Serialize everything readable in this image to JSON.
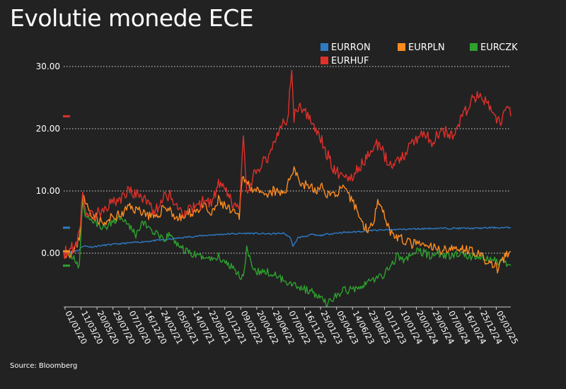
{
  "title": "Evolutie monede ECE",
  "source": "Source: Bloomberg",
  "colors": {
    "background": "#222222",
    "EURRON": "#2e7bc4",
    "EURPLN": "#ff8b1f",
    "EURCZK": "#2ea02e",
    "EURHUF": "#e0302a",
    "grid": "#ffffff",
    "text": "#ffffff"
  },
  "chart_data": {
    "type": "line",
    "title": "Evolutie monede ECE",
    "xlabel": "",
    "ylabel": "",
    "ylim": [
      -8,
      31
    ],
    "xlim": [
      "2020-01-01",
      "2025-05-30"
    ],
    "y_ticks": [
      {
        "value": 0,
        "label": "0.00"
      },
      {
        "value": 10,
        "label": "10.00"
      },
      {
        "value": 20,
        "label": "20.00"
      },
      {
        "value": 30,
        "label": "30.00"
      }
    ],
    "grid": "horizontal dotted",
    "legend_position": "top-right",
    "x_tick_labels": [
      "01/01/20",
      "11/03/20",
      "20/05/20",
      "29/07/20",
      "07/10/20",
      "16/12/20",
      "24/02/21",
      "05/05/21",
      "14/07/21",
      "22/09/21",
      "01/12/21",
      "09/02/22",
      "20/04/22",
      "29/06/22",
      "07/09/22",
      "16/11/22",
      "25/01/23",
      "05/04/23",
      "14/06/23",
      "23/08/23",
      "01/11/23",
      "10/01/24",
      "20/03/24",
      "29/05/24",
      "07/08/24",
      "16/10/24",
      "25/12/24",
      "05/03/25"
    ],
    "series": [
      {
        "name": "EURRON",
        "x": [
          "2020-01-01",
          "2020-02-15",
          "2020-03-10",
          "2020-03-25",
          "2020-05-01",
          "2020-07-01",
          "2020-10-01",
          "2021-01-01",
          "2021-04-01",
          "2021-07-01",
          "2021-10-01",
          "2022-01-01",
          "2022-04-01",
          "2022-07-01",
          "2022-09-01",
          "2022-10-01",
          "2022-10-10",
          "2022-11-01",
          "2022-12-01",
          "2023-01-01",
          "2023-02-01",
          "2023-03-01",
          "2023-05-01",
          "2023-07-01",
          "2023-09-01",
          "2023-11-01",
          "2024-01-01",
          "2024-04-01",
          "2024-07-01",
          "2024-10-01",
          "2025-01-01",
          "2025-03-01",
          "2025-05-30"
        ],
        "values": [
          0.0,
          0.3,
          0.5,
          1.2,
          1.0,
          1.3,
          1.6,
          1.9,
          2.2,
          2.6,
          2.9,
          3.1,
          3.2,
          3.1,
          3.2,
          2.4,
          1.0,
          2.5,
          2.7,
          3.0,
          2.8,
          3.0,
          3.3,
          3.4,
          3.6,
          3.7,
          3.8,
          3.9,
          4.0,
          4.0,
          4.0,
          4.1,
          4.1
        ],
        "end_value": 4.1
      },
      {
        "name": "EURPLN",
        "x": [
          "2020-01-01",
          "2020-02-15",
          "2020-03-10",
          "2020-03-25",
          "2020-04-05",
          "2020-05-01",
          "2020-06-01",
          "2020-07-01",
          "2020-08-01",
          "2020-09-15",
          "2020-10-15",
          "2020-11-15",
          "2020-12-15",
          "2021-01-15",
          "2021-02-15",
          "2021-03-15",
          "2021-04-15",
          "2021-05-15",
          "2021-06-15",
          "2021-07-15",
          "2021-08-15",
          "2021-09-15",
          "2021-10-15",
          "2021-11-15",
          "2021-12-15",
          "2022-01-15",
          "2022-02-15",
          "2022-03-01",
          "2022-03-15",
          "2022-04-15",
          "2022-05-15",
          "2022-06-15",
          "2022-07-15",
          "2022-08-15",
          "2022-09-15",
          "2022-10-01",
          "2022-10-15",
          "2022-11-15",
          "2022-12-15",
          "2023-01-15",
          "2023-02-15",
          "2023-03-15",
          "2023-04-15",
          "2023-05-15",
          "2023-06-15",
          "2023-07-15",
          "2023-08-15",
          "2023-09-15",
          "2023-10-01",
          "2023-10-20",
          "2023-11-15",
          "2023-12-15",
          "2024-01-15",
          "2024-02-15",
          "2024-03-15",
          "2024-04-15",
          "2024-05-15",
          "2024-06-15",
          "2024-07-15",
          "2024-08-15",
          "2024-09-15",
          "2024-10-15",
          "2024-11-15",
          "2024-12-15",
          "2025-01-15",
          "2025-02-15",
          "2025-03-15",
          "2025-04-01",
          "2025-04-15",
          "2025-05-30"
        ],
        "values": [
          0.0,
          0.2,
          2.5,
          9.5,
          8.0,
          6.5,
          5.5,
          4.5,
          5.8,
          6.2,
          7.5,
          7.0,
          6.8,
          6.0,
          5.5,
          7.5,
          7.0,
          5.5,
          5.8,
          6.5,
          7.0,
          7.5,
          6.0,
          8.5,
          7.5,
          6.5,
          5.8,
          13.0,
          11.5,
          10.5,
          9.5,
          9.0,
          10.0,
          9.5,
          10.5,
          12.5,
          14.0,
          11.0,
          11.0,
          10.0,
          10.5,
          9.5,
          9.5,
          10.5,
          9.0,
          7.5,
          4.5,
          3.8,
          5.0,
          9.0,
          6.5,
          3.5,
          2.5,
          2.0,
          1.5,
          1.5,
          1.0,
          1.0,
          0.5,
          0.8,
          0.5,
          1.0,
          0.5,
          0.5,
          -0.5,
          -1.5,
          -1.8,
          -2.5,
          -1.5,
          0.3
        ],
        "end_value": 0.3
      },
      {
        "name": "EURCZK",
        "x": [
          "2020-01-01",
          "2020-02-15",
          "2020-03-10",
          "2020-03-25",
          "2020-04-05",
          "2020-05-01",
          "2020-06-01",
          "2020-07-01",
          "2020-08-01",
          "2020-09-15",
          "2020-10-15",
          "2020-11-15",
          "2020-12-15",
          "2021-01-15",
          "2021-02-15",
          "2021-03-15",
          "2021-04-15",
          "2021-05-15",
          "2021-06-15",
          "2021-07-15",
          "2021-08-15",
          "2021-09-15",
          "2021-10-15",
          "2021-11-15",
          "2021-12-15",
          "2022-01-15",
          "2022-02-15",
          "2022-03-05",
          "2022-03-20",
          "2022-04-15",
          "2022-05-15",
          "2022-06-15",
          "2022-07-15",
          "2022-08-15",
          "2022-09-15",
          "2022-10-15",
          "2022-11-15",
          "2022-12-15",
          "2023-01-15",
          "2023-02-15",
          "2023-03-15",
          "2023-04-15",
          "2023-05-15",
          "2023-06-15",
          "2023-07-15",
          "2023-08-15",
          "2023-09-15",
          "2023-10-15",
          "2023-11-15",
          "2023-12-15",
          "2024-01-15",
          "2024-02-15",
          "2024-03-15",
          "2024-04-15",
          "2024-05-15",
          "2024-06-15",
          "2024-07-15",
          "2024-08-15",
          "2024-09-15",
          "2024-10-15",
          "2024-11-15",
          "2024-12-15",
          "2025-01-15",
          "2025-02-15",
          "2025-03-15",
          "2025-04-15",
          "2025-05-30"
        ],
        "values": [
          0.0,
          -0.5,
          -2.5,
          9.0,
          6.0,
          5.5,
          4.5,
          4.0,
          5.0,
          6.0,
          4.5,
          3.0,
          5.0,
          4.0,
          3.0,
          2.0,
          3.0,
          1.5,
          0.5,
          0.0,
          -0.5,
          -0.5,
          -1.0,
          -0.5,
          -1.5,
          -2.0,
          -3.5,
          -4.0,
          1.0,
          -3.0,
          -3.0,
          -3.0,
          -3.5,
          -4.0,
          -4.5,
          -5.0,
          -5.5,
          -6.0,
          -6.5,
          -7.5,
          -8.0,
          -7.0,
          -6.0,
          -6.0,
          -5.5,
          -5.0,
          -4.5,
          -4.0,
          -3.5,
          -2.0,
          -0.5,
          -1.0,
          -0.5,
          0.5,
          0.0,
          -0.5,
          0.0,
          -0.5,
          -0.5,
          0.0,
          -0.5,
          -0.5,
          -0.5,
          -1.0,
          -1.0,
          -1.5,
          -2.0
        ],
        "end_value": -2.0
      },
      {
        "name": "EURHUF",
        "x": [
          "2020-01-01",
          "2020-02-15",
          "2020-03-10",
          "2020-03-25",
          "2020-04-05",
          "2020-05-01",
          "2020-06-01",
          "2020-07-01",
          "2020-08-01",
          "2020-09-15",
          "2020-10-15",
          "2020-11-15",
          "2020-12-15",
          "2021-01-15",
          "2021-02-15",
          "2021-03-15",
          "2021-04-15",
          "2021-05-15",
          "2021-06-15",
          "2021-07-15",
          "2021-08-15",
          "2021-09-15",
          "2021-10-15",
          "2021-11-15",
          "2021-12-15",
          "2022-01-15",
          "2022-02-15",
          "2022-03-05",
          "2022-03-20",
          "2022-04-15",
          "2022-05-15",
          "2022-06-15",
          "2022-07-15",
          "2022-08-15",
          "2022-09-15",
          "2022-10-05",
          "2022-10-15",
          "2022-11-15",
          "2022-12-15",
          "2023-01-15",
          "2023-02-15",
          "2023-03-15",
          "2023-04-15",
          "2023-05-15",
          "2023-06-15",
          "2023-07-15",
          "2023-08-15",
          "2023-09-15",
          "2023-10-15",
          "2023-11-15",
          "2023-12-15",
          "2024-01-15",
          "2024-02-15",
          "2024-03-15",
          "2024-04-15",
          "2024-05-15",
          "2024-06-15",
          "2024-07-15",
          "2024-08-15",
          "2024-09-15",
          "2024-10-15",
          "2024-11-15",
          "2024-12-15",
          "2025-01-15",
          "2025-02-15",
          "2025-03-15",
          "2025-04-15",
          "2025-05-10",
          "2025-05-30"
        ],
        "values": [
          0.0,
          1.0,
          3.0,
          10.0,
          7.0,
          6.0,
          6.5,
          7.5,
          8.0,
          9.0,
          10.0,
          9.5,
          9.0,
          7.5,
          7.0,
          9.0,
          9.5,
          7.5,
          6.5,
          7.0,
          7.5,
          8.5,
          8.0,
          11.0,
          10.0,
          8.0,
          7.0,
          18.0,
          9.5,
          12.0,
          14.0,
          15.0,
          17.5,
          20.5,
          21.0,
          29.5,
          22.0,
          23.5,
          22.0,
          20.0,
          18.0,
          15.5,
          13.0,
          13.0,
          12.0,
          13.0,
          14.5,
          16.0,
          17.5,
          16.0,
          14.0,
          15.0,
          16.0,
          17.5,
          18.5,
          19.5,
          18.0,
          19.0,
          19.5,
          19.0,
          21.0,
          23.0,
          25.0,
          25.0,
          24.0,
          22.5,
          20.5,
          24.0,
          22.0
        ],
        "end_value": 22.0
      }
    ]
  }
}
